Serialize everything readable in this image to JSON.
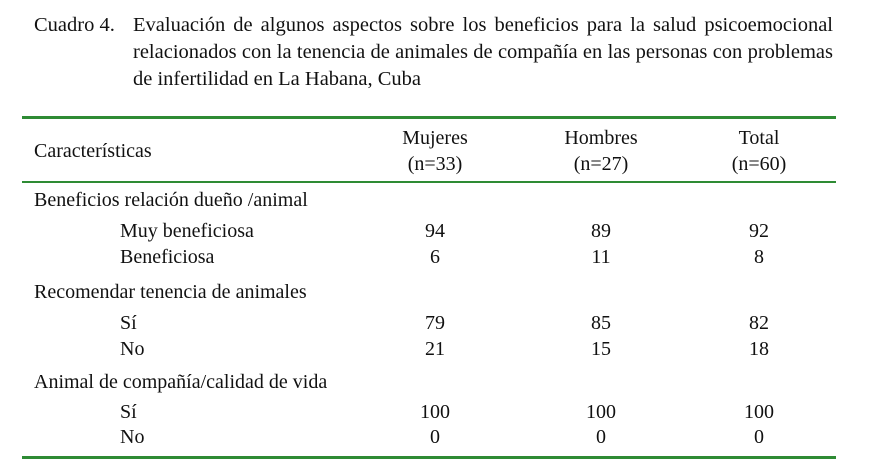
{
  "caption": {
    "label": "Cuadro 4.",
    "text": "Evaluación de algunos aspectos sobre los beneficios para la salud psicoemocional relacionados con la tenencia de animales de compañía en las personas con problemas de infertilidad en La Habana, Cuba"
  },
  "table": {
    "header": {
      "characteristics": "Características",
      "columns": [
        {
          "name": "Mujeres",
          "n": "(n=33)"
        },
        {
          "name": "Hombres",
          "n": "(n=27)"
        },
        {
          "name": "Total",
          "n": "(n=60)"
        }
      ]
    },
    "groups": [
      {
        "title": "Beneficios relación dueño /animal",
        "rows": [
          {
            "label": "Muy beneficiosa",
            "values": [
              "94",
              "89",
              "92"
            ]
          },
          {
            "label": "Beneficiosa",
            "values": [
              "6",
              "11",
              "8"
            ]
          }
        ]
      },
      {
        "title": "Recomendar tenencia de animales",
        "rows": [
          {
            "label": "Sí",
            "values": [
              "79",
              "85",
              "82"
            ]
          },
          {
            "label": "No",
            "values": [
              "21",
              "15",
              "18"
            ]
          }
        ]
      },
      {
        "title": "Animal de compañía/calidad de vida",
        "rows": [
          {
            "label": "Sí",
            "values": [
              "100",
              "100",
              "100"
            ]
          },
          {
            "label": "No",
            "values": [
              "0",
              "0",
              "0"
            ]
          }
        ]
      }
    ]
  }
}
